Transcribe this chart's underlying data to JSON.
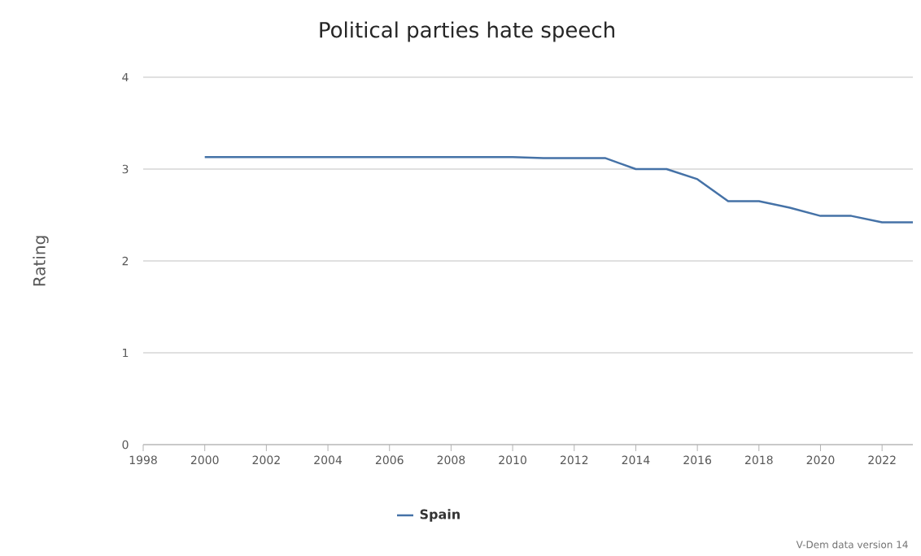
{
  "chart_data": {
    "type": "line",
    "title": "Political parties hate speech",
    "ylabel": "Rating",
    "x": [
      2000,
      2001,
      2002,
      2003,
      2004,
      2005,
      2006,
      2007,
      2008,
      2009,
      2010,
      2011,
      2012,
      2013,
      2014,
      2015,
      2016,
      2017,
      2018,
      2019,
      2020,
      2021,
      2022,
      2023
    ],
    "series": [
      {
        "name": "Spain",
        "color": "#4572a7",
        "values": [
          3.13,
          3.13,
          3.13,
          3.13,
          3.13,
          3.13,
          3.13,
          3.13,
          3.13,
          3.13,
          3.13,
          3.12,
          3.12,
          3.12,
          3.0,
          3.0,
          2.89,
          2.65,
          2.65,
          2.58,
          2.49,
          2.49,
          2.42,
          2.42
        ]
      }
    ],
    "xlim": [
      1998,
      2023
    ],
    "ylim": [
      0,
      4
    ],
    "xticks": [
      1998,
      2000,
      2002,
      2004,
      2006,
      2008,
      2010,
      2012,
      2014,
      2016,
      2018,
      2020,
      2022
    ],
    "yticks": [
      0,
      1,
      2,
      3,
      4
    ],
    "grid": "y",
    "legend": "bottom",
    "marker": "none",
    "annotations": [
      "V-Dem data version 14"
    ]
  }
}
